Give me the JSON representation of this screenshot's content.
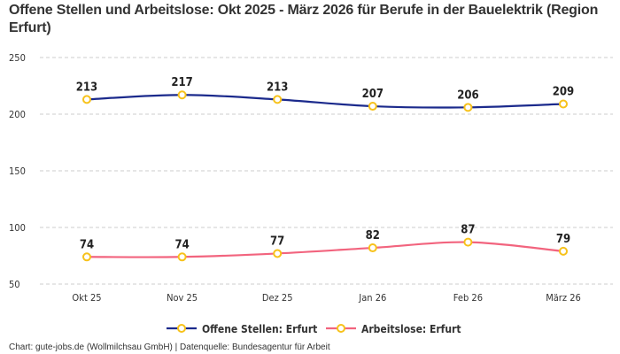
{
  "chart_data": {
    "type": "line",
    "title": "Offene Stellen und Arbeitslose: Okt 2025 - März 2026 für Berufe in der Bauelektrik (Region Erfurt)",
    "categories": [
      "Okt 25",
      "Nov 25",
      "Dez 25",
      "Jan 26",
      "Feb 26",
      "März 26"
    ],
    "ylim": [
      50,
      250
    ],
    "yticks": [
      50,
      100,
      150,
      200,
      250
    ],
    "grid": true,
    "legend_position": "bottom",
    "series": [
      {
        "name": "Offene Stellen: Erfurt",
        "values": [
          213,
          217,
          213,
          207,
          206,
          209
        ],
        "color": "#1b2a8c"
      },
      {
        "name": "Arbeitslose: Erfurt",
        "values": [
          74,
          74,
          77,
          82,
          87,
          79
        ],
        "color": "#f2647e"
      }
    ],
    "marker_color": "#f7c21b",
    "source": "Chart: gute-jobs.de (Wollmilchsau GmbH) | Datenquelle: Bundesagentur für Arbeit"
  }
}
